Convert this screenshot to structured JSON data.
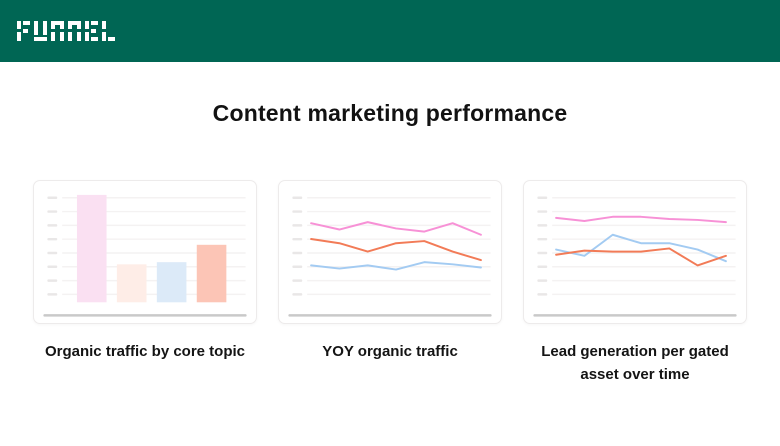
{
  "header": {
    "logo_text": "FUNNEL",
    "bg_color": "#006654"
  },
  "page": {
    "title": "Content marketing performance"
  },
  "style": {
    "grid_color": "#f4f2f2",
    "tick_color": "#e9e7e7",
    "baseline_color": "#c9c9c9",
    "title_color": "#121212"
  },
  "chart_data": [
    {
      "type": "bar",
      "title": "Organic traffic by core topic",
      "categories": [
        "",
        "",
        "",
        ""
      ],
      "values": [
        99,
        35,
        37,
        53
      ],
      "units": "percent of plot height (axis shows only placeholder tick dashes, no numeric labels)",
      "bar_colors": [
        "#fae0f2",
        "#feede7",
        "#dceaf8",
        "#fcc5b6"
      ],
      "yticks_count": 8,
      "grid": true,
      "legend": false,
      "xlabel": "",
      "ylabel": ""
    },
    {
      "type": "line",
      "title": "YOY organic traffic",
      "x": [
        1,
        2,
        3,
        4,
        5,
        6,
        7
      ],
      "units": "percent of plot height (axis shows only placeholder tick dashes, no numeric labels)",
      "series": [
        {
          "name": "pink-line",
          "color": "#f791d6",
          "values": [
            75,
            69,
            76,
            70,
            67,
            75,
            64
          ]
        },
        {
          "name": "orange-line",
          "color": "#f27b57",
          "values": [
            60,
            56,
            48,
            56,
            58,
            48,
            40
          ]
        },
        {
          "name": "blue-line",
          "color": "#a3cbf2",
          "values": [
            35,
            32,
            35,
            31,
            38,
            36,
            33
          ]
        }
      ],
      "yticks_count": 8,
      "grid": true,
      "legend": false,
      "xlabel": "",
      "ylabel": ""
    },
    {
      "type": "line",
      "title": "Lead generation per gated asset over time",
      "x": [
        1,
        2,
        3,
        4,
        5,
        6,
        7
      ],
      "units": "percent of plot height (axis shows only placeholder tick dashes, no numeric labels)",
      "series": [
        {
          "name": "pink-line",
          "color": "#f791d6",
          "values": [
            80,
            77,
            81,
            81,
            79,
            78,
            76
          ]
        },
        {
          "name": "blue-line",
          "color": "#a3cbf2",
          "values": [
            50,
            44,
            64,
            56,
            56,
            50,
            39
          ]
        },
        {
          "name": "orange-line",
          "color": "#f27b57",
          "values": [
            45,
            49,
            48,
            48,
            51,
            35,
            44
          ]
        }
      ],
      "yticks_count": 8,
      "grid": true,
      "legend": false,
      "xlabel": "",
      "ylabel": ""
    }
  ]
}
